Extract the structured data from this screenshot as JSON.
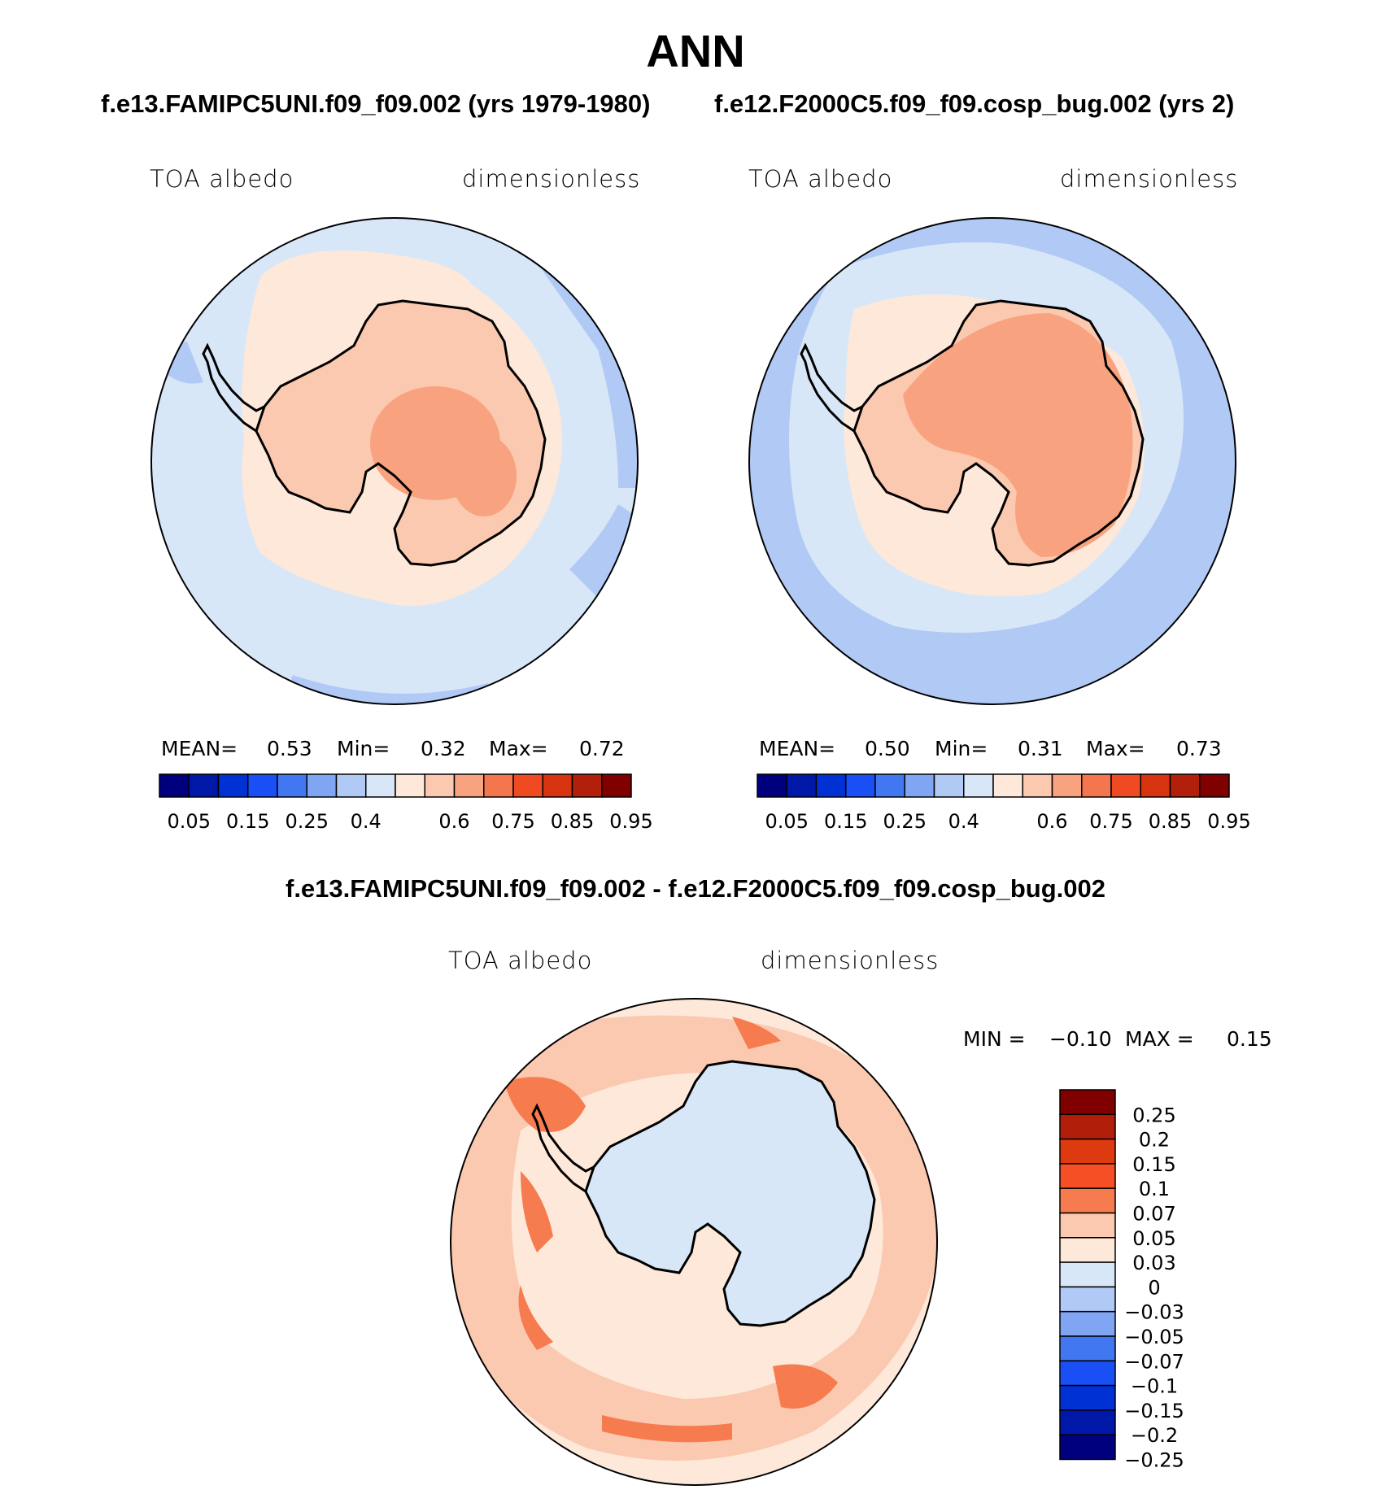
{
  "figure": {
    "title": "ANN",
    "case1_title": "f.e13.FAMIPC5UNI.f09_f09.002 (yrs 1979-1980)",
    "case2_title": "f.e12.F2000C5.f09_f09.cosp_bug.002 (yrs 2)",
    "diff_title": "f.e13.FAMIPC5UNI.f09_f09.002 - f.e12.F2000C5.f09_f09.cosp_bug.002"
  },
  "panel1": {
    "variable": "TOA albedo",
    "units": "dimensionless",
    "mean_label": "MEAN=",
    "mean": "0.53",
    "min_label": "Min=",
    "min": "0.32",
    "max_label": "Max=",
    "max": "0.72"
  },
  "panel2": {
    "variable": "TOA albedo",
    "units": "dimensionless",
    "mean_label": "MEAN=",
    "mean": "0.50",
    "min_label": "Min=",
    "min": "0.31",
    "max_label": "Max=",
    "max": "0.73"
  },
  "panel3": {
    "variable": "TOA albedo",
    "units": "dimensionless",
    "min_label": "MIN =",
    "min": "−0.10",
    "max_label": "MAX =",
    "max": "0.15"
  },
  "abs_colorbar": {
    "colors": [
      "#00007f",
      "#0018a8",
      "#0031d4",
      "#1a4ff5",
      "#4277f2",
      "#7fa5f3",
      "#b1c9f5",
      "#d8e7f7",
      "#fde8d9",
      "#fbc8b0",
      "#f9a27f",
      "#f4764f",
      "#f04a22",
      "#d8330f",
      "#b21f0a",
      "#800000"
    ],
    "labels": [
      "0.05",
      "0.15",
      "0.25",
      "0.4",
      "0.6",
      "0.75",
      "0.85",
      "0.95"
    ]
  },
  "diff_colorbar": {
    "colors": [
      "#800000",
      "#b11f0a",
      "#de3a10",
      "#f74f25",
      "#f67b4e",
      "#fbc8b0",
      "#fde8d9",
      "#d8e7f7",
      "#b1c9f5",
      "#7fa5f3",
      "#4277f2",
      "#1a4ff5",
      "#0031d4",
      "#0018a8",
      "#00007f"
    ],
    "labels": [
      "0.25",
      "0.2",
      "0.15",
      "0.1",
      "0.07",
      "0.05",
      "0.03",
      "0",
      "−0.03",
      "−0.05",
      "−0.07",
      "−0.1",
      "−0.15",
      "−0.2",
      "−0.25"
    ]
  },
  "map_colors": {
    "ocean_light": "#d8e7f7",
    "ocean_mid": "#b1c9f5",
    "ocean_deep": "#7fa5f3",
    "land_light": "#fde8d9",
    "land_mid": "#fbc8b0",
    "land_high": "#f9a27f",
    "diff_mid": "#f67b4e"
  }
}
